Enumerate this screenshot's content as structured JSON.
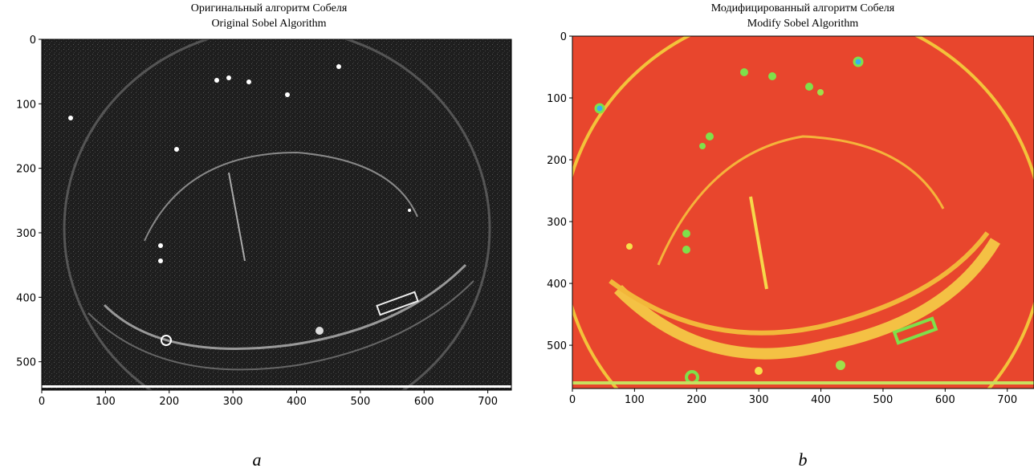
{
  "figure": {
    "panels": [
      {
        "title": [
          "Оригинальный алгоритм Собеля",
          "Original Sobel Algorithm"
        ],
        "xlim": [
          0,
          737
        ],
        "ylim": [
          0,
          544
        ],
        "xticks": [
          0,
          100,
          200,
          300,
          400,
          500,
          600,
          700
        ],
        "yticks": [
          0,
          100,
          200,
          300,
          400,
          500
        ],
        "caption": "a"
      },
      {
        "title": [
          "Модифицированный алгоритм Собеля",
          "Modify Sobel Algorithm"
        ],
        "xlim": [
          0,
          743
        ],
        "ylim": [
          0,
          570
        ],
        "xticks": [
          0,
          100,
          200,
          300,
          400,
          500,
          600,
          700
        ],
        "yticks": [
          0,
          100,
          200,
          300,
          400,
          500
        ],
        "caption": "b"
      }
    ]
  }
}
